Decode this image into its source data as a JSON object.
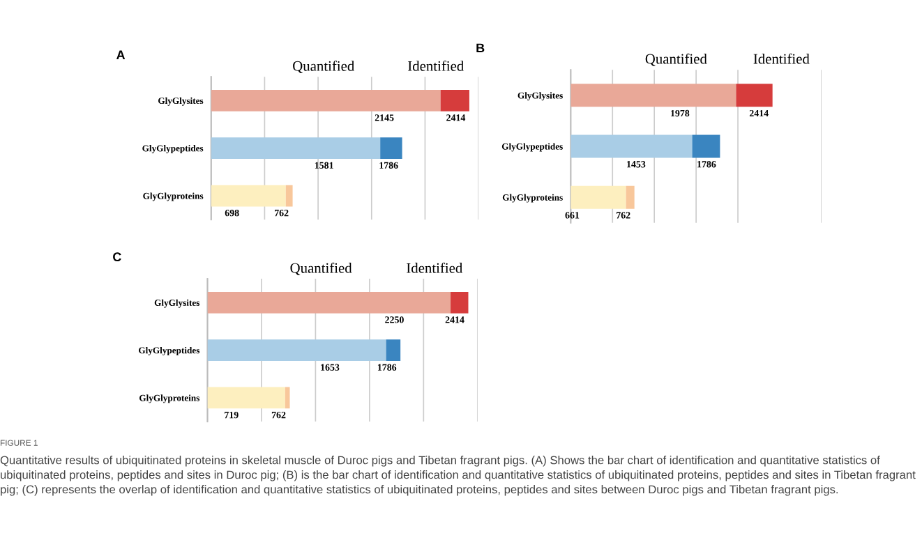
{
  "chart_data": [
    {
      "type": "bar",
      "title": "A",
      "orientation": "horizontal",
      "stacked": true,
      "categories": [
        "GlyGlysites",
        "GlyGlypeptides",
        "GlyGlyproteins"
      ],
      "series": [
        {
          "colors": [
            "#e9a898",
            "#a9cde6",
            "#fdefbf"
          ],
          "values": [
            2145,
            1581,
            698
          ],
          "value_labels": [
            "2145",
            "1581",
            "698"
          ]
        },
        {
          "colors": [
            "#d63c3c",
            "#3a85c0",
            "#f8c79b"
          ],
          "values": [
            269,
            205,
            64
          ]
        }
      ],
      "totals": [
        "2414",
        "1786",
        "762"
      ],
      "xlim": [
        0,
        2500
      ],
      "xticks": [
        {
          "value": 0,
          "label": null
        },
        {
          "value": 500,
          "label": null
        },
        {
          "value": 1000,
          "label": null
        },
        {
          "value": 1500,
          "label": null
        },
        {
          "value": 2000,
          "label": null
        },
        {
          "value": 2500,
          "label": null
        }
      ],
      "grid": "x",
      "tick_labels": "y",
      "annotations": [
        "Quantified",
        "Identified"
      ]
    },
    {
      "type": "bar",
      "title": "B",
      "orientation": "horizontal",
      "stacked": true,
      "categories": [
        "GlyGlysites",
        "GlyGlypeptides",
        "GlyGlyproteins"
      ],
      "series": [
        {
          "colors": [
            "#e9a898",
            "#a9cde6",
            "#fdefbf"
          ],
          "values": [
            1978,
            1453,
            661
          ],
          "value_labels": [
            "1978",
            "1453",
            "661"
          ]
        },
        {
          "colors": [
            "#d63c3c",
            "#3a85c0",
            "#f8c79b"
          ],
          "values": [
            436,
            333,
            101
          ]
        }
      ],
      "totals": [
        "2414",
        "1786",
        "762"
      ],
      "xlim": [
        0,
        3000
      ],
      "xticks": [
        {
          "value": 0,
          "label": null
        },
        {
          "value": 500,
          "label": null
        },
        {
          "value": 1000,
          "label": null
        },
        {
          "value": 1500,
          "label": null
        },
        {
          "value": 2000,
          "label": null
        },
        {
          "value": 3000,
          "label": null
        }
      ],
      "grid": "x",
      "tick_labels": "y",
      "annotations": [
        "Quantified",
        "Identified"
      ]
    },
    {
      "type": "bar",
      "title": "C",
      "orientation": "horizontal",
      "stacked": true,
      "categories": [
        "GlyGlysites",
        "GlyGlypeptides",
        "GlyGlyproteins"
      ],
      "series": [
        {
          "colors": [
            "#e9a898",
            "#a9cde6",
            "#fdefbf"
          ],
          "values": [
            2250,
            1653,
            719
          ],
          "value_labels": [
            "2250",
            "1653",
            "719"
          ]
        },
        {
          "colors": [
            "#d63c3c",
            "#3a85c0",
            "#f8c79b"
          ],
          "values": [
            164,
            133,
            43
          ]
        }
      ],
      "totals": [
        "2414",
        "1786",
        "762"
      ],
      "xlim": [
        0,
        2500
      ],
      "xticks": [
        {
          "value": 0,
          "label": null
        },
        {
          "value": 500,
          "label": null
        },
        {
          "value": 1000,
          "label": null
        },
        {
          "value": 1500,
          "label": null
        },
        {
          "value": 2000,
          "label": null
        },
        {
          "value": 2500,
          "label": null
        }
      ],
      "grid": "x",
      "tick_labels": "y",
      "annotations": [
        "Quantified",
        "Identified",
        "FIGURE 1",
        "Quantitative results of ubiquitinated proteins in skeletal muscle of Duroc pigs and Tibetan fragrant pigs. (A) Shows the bar chart of identification and quantitative statistics of ubiquitinated proteins, peptides and sites in Duroc pig; (B) is the bar chart of identification and quantitative statistics of ubiquitinated proteins, peptides and sites in Tibetan fragrant pig; (C) represents the overlap of identification and quantitative statistics of ubiquitinated proteins, peptides and sites between Duroc pigs and Tibetan fragrant pigs."
      ]
    }
  ]
}
